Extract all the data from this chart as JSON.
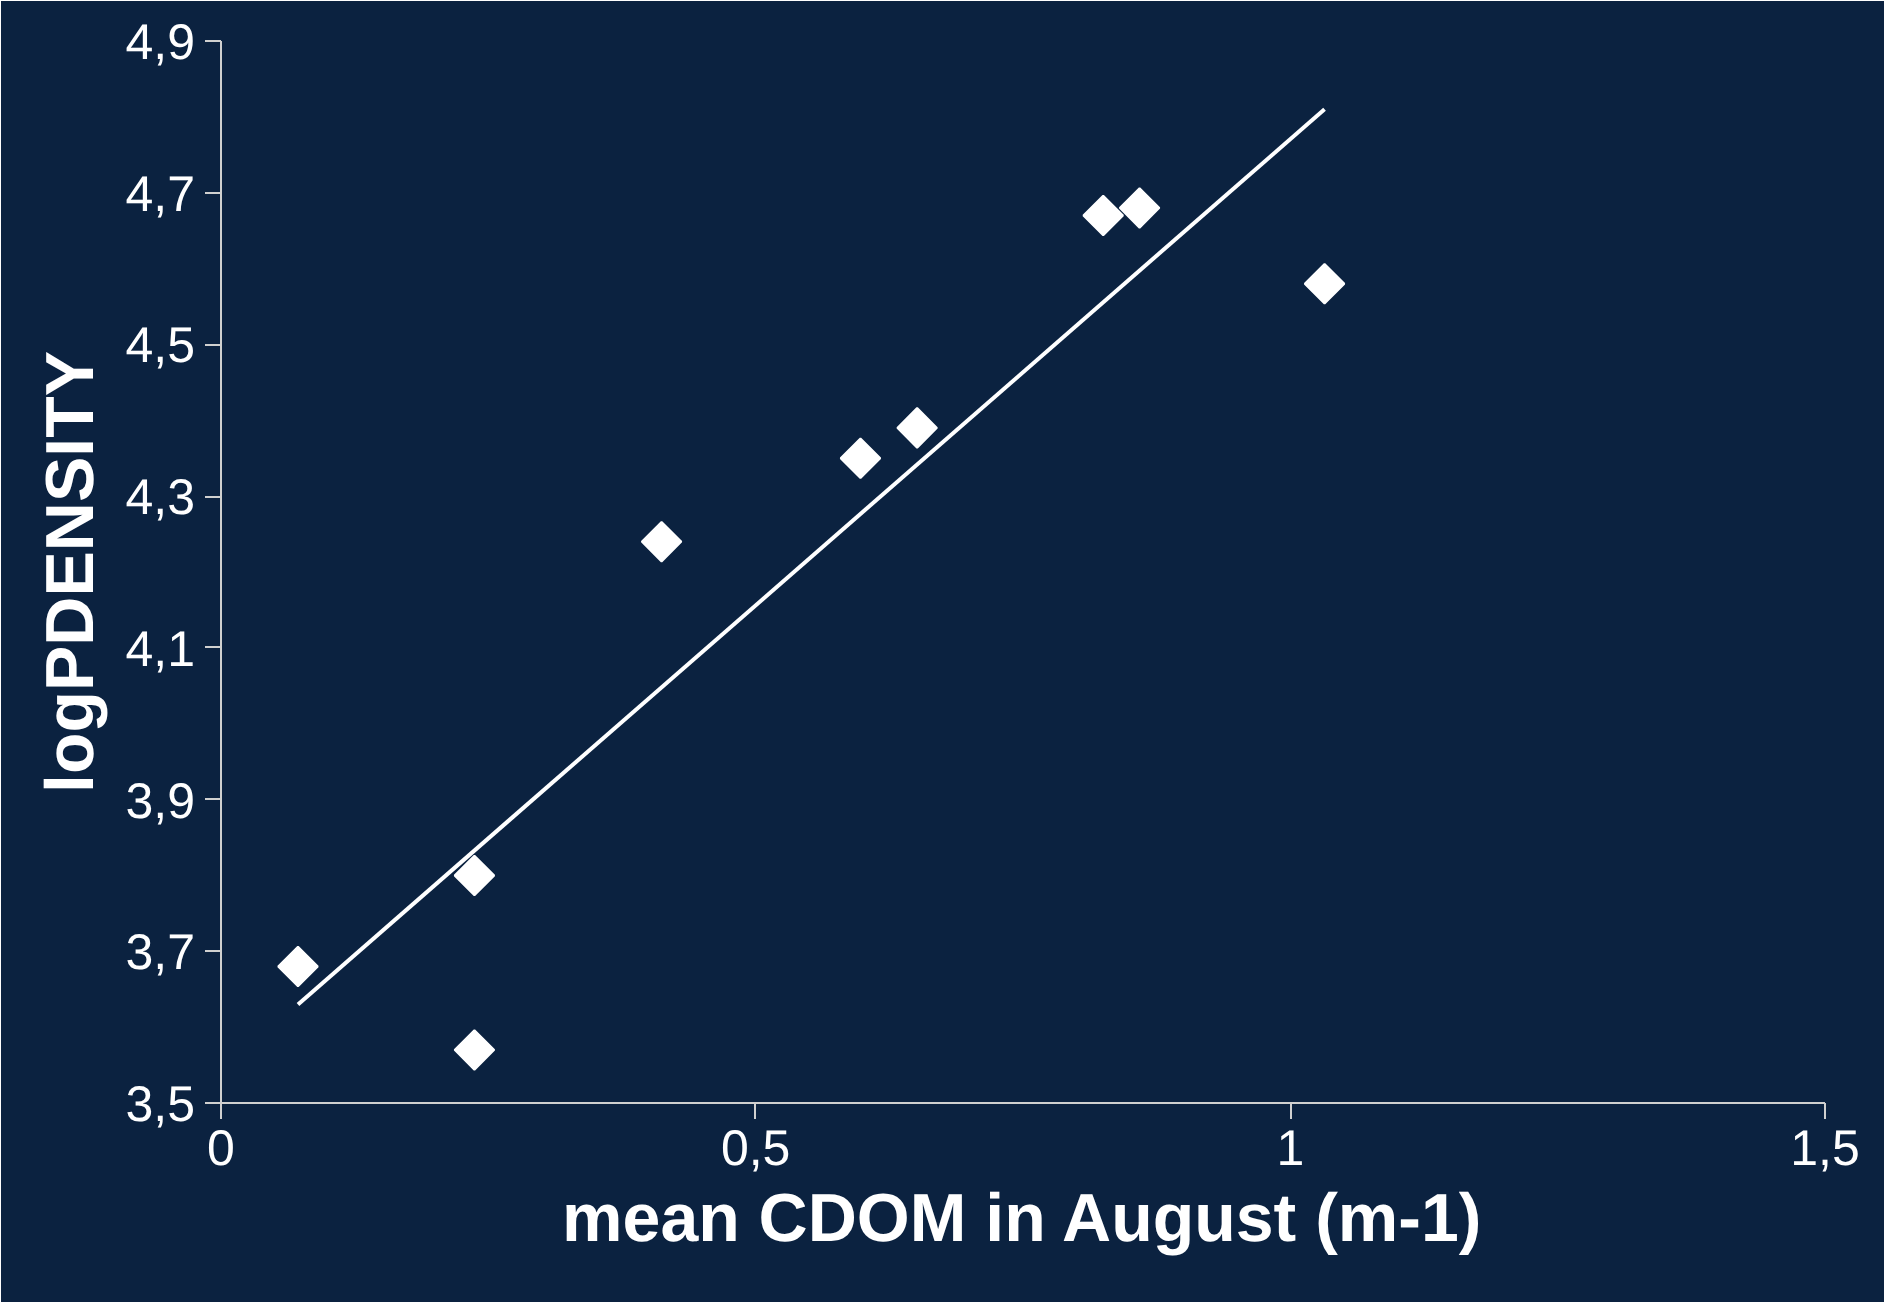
{
  "chart_data": {
    "type": "scatter",
    "xlabel": "mean CDOM in August (m-1)",
    "ylabel": "logPDENSITY",
    "xlim": [
      0,
      1.5
    ],
    "ylim": [
      3.5,
      4.9
    ],
    "xticks": [
      0,
      {
        "value": 0.5,
        "label": "0,5"
      },
      1,
      {
        "value": 1.5,
        "label": "1,5"
      }
    ],
    "yticks": [
      {
        "value": 3.5,
        "label": "3,5"
      },
      {
        "value": 3.7,
        "label": "3,7"
      },
      {
        "value": 3.9,
        "label": "3,9"
      },
      {
        "value": 4.1,
        "label": "4,1"
      },
      {
        "value": 4.3,
        "label": "4,3"
      },
      {
        "value": 4.5,
        "label": "4,5"
      },
      {
        "value": 4.7,
        "label": "4,7"
      },
      {
        "value": 4.9,
        "label": "4,9"
      }
    ],
    "grid": false,
    "series": [
      {
        "marker": "diamond",
        "color": "#ffffff",
        "x": [
          0.072,
          0.237,
          0.237,
          0.412,
          0.598,
          0.651,
          0.825,
          0.859,
          1.032
        ],
        "values": [
          3.68,
          3.8,
          3.57,
          4.24,
          4.35,
          4.39,
          4.67,
          4.68,
          4.58
        ]
      },
      {
        "type": "line",
        "color": "#ffffff",
        "x": [
          0.072,
          1.032
        ],
        "values": [
          3.63,
          4.81
        ]
      }
    ]
  }
}
